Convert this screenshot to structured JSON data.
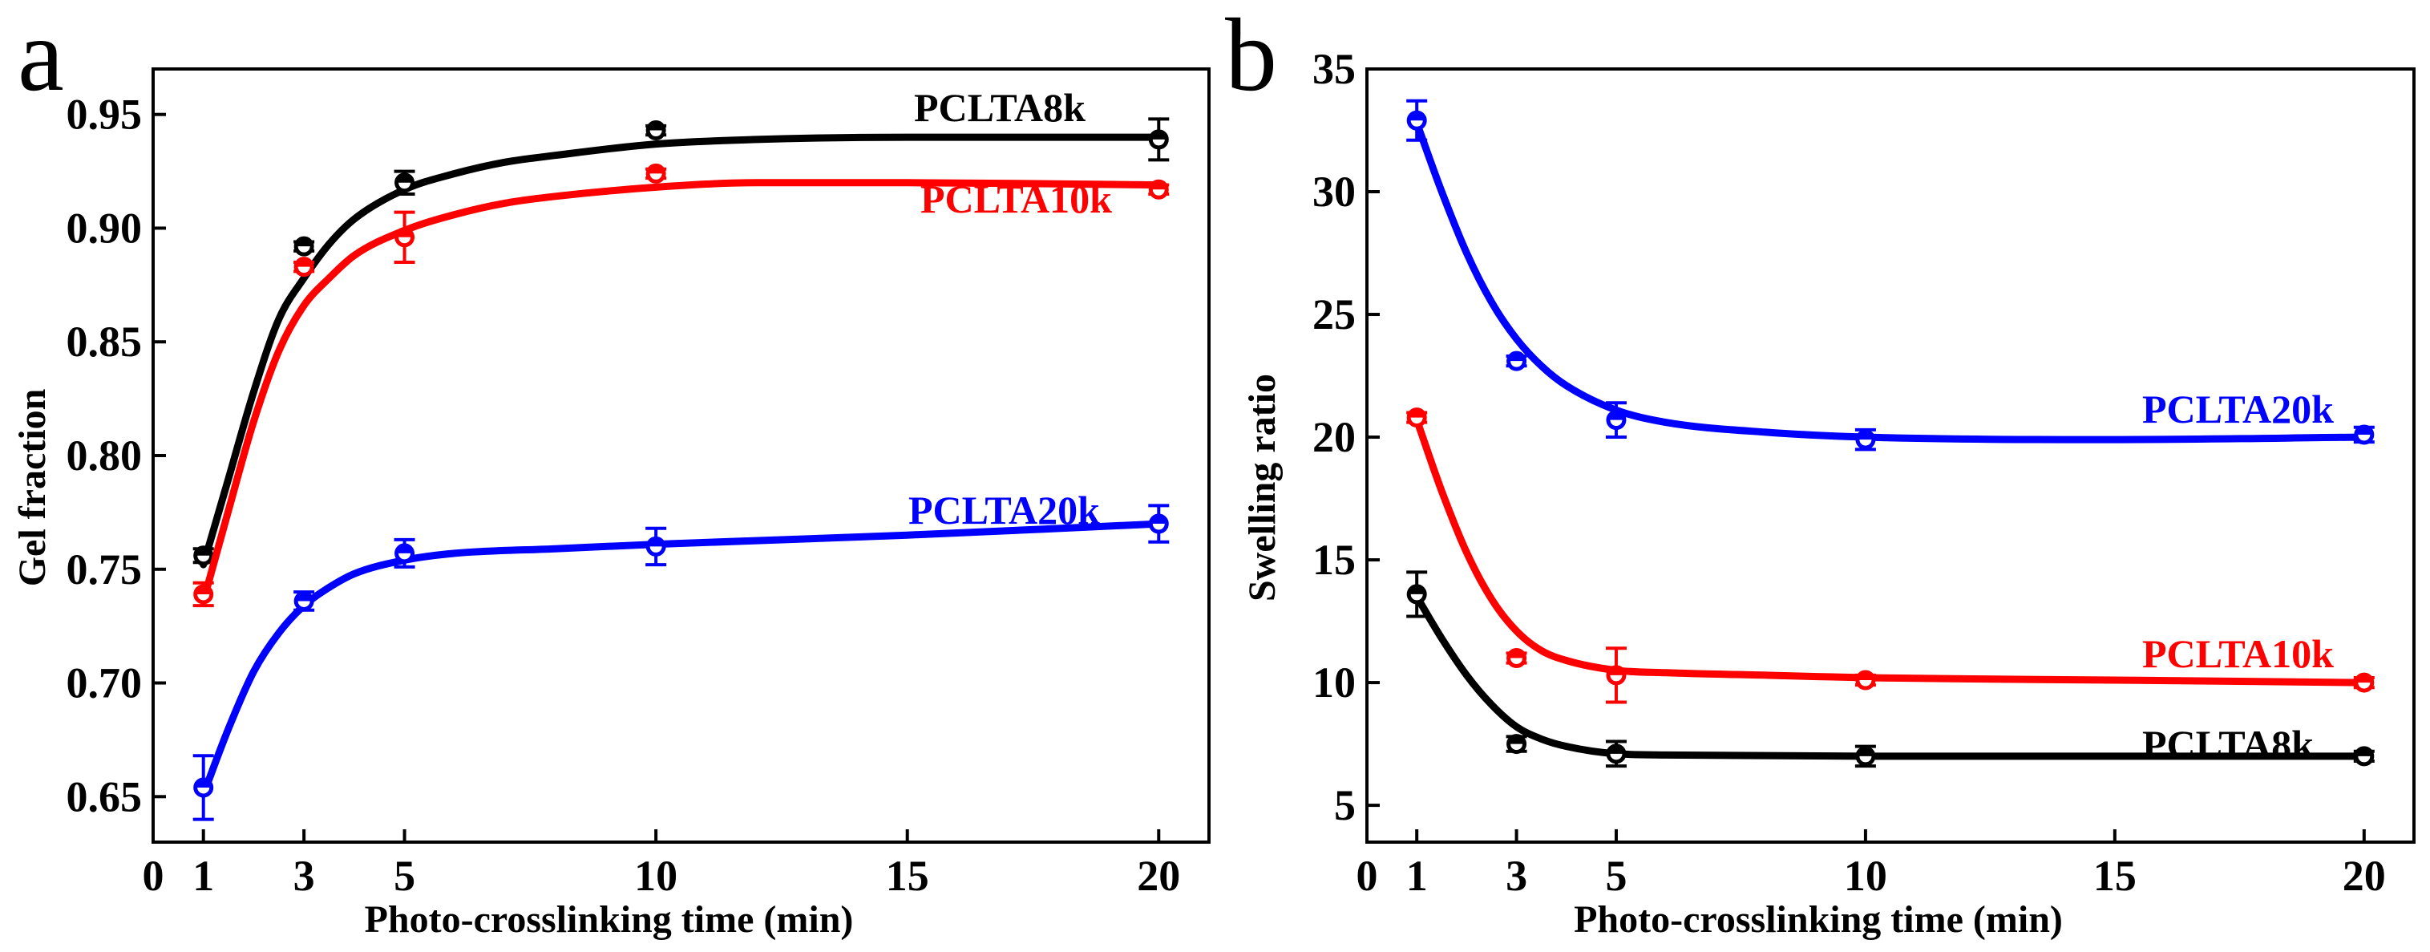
{
  "chart_data": [
    {
      "type": "scatter",
      "panel_label": "a",
      "xlabel": "Photo-crosslinking time (min)",
      "ylabel": "Gel fraction",
      "xlim": [
        0,
        21
      ],
      "ylim": [
        0.63,
        0.97
      ],
      "xticks": [
        "0",
        "1",
        "3",
        "5",
        "10",
        "15",
        "20"
      ],
      "yticks": [
        "0.65",
        "0.70",
        "0.75",
        "0.80",
        "0.85",
        "0.90",
        "0.95"
      ],
      "grid": false,
      "series": [
        {
          "name": "PCLTA8k",
          "color": "#000000",
          "x": [
            1,
            3,
            5,
            10,
            20
          ],
          "y": [
            0.756,
            0.892,
            0.92,
            0.943,
            0.939
          ],
          "err": [
            0.003,
            0.002,
            0.005,
            0.002,
            0.009
          ],
          "fit": [
            [
              1,
              0.752
            ],
            [
              1.5,
              0.79
            ],
            [
              2,
              0.828
            ],
            [
              2.5,
              0.86
            ],
            [
              3,
              0.878
            ],
            [
              3.5,
              0.893
            ],
            [
              4,
              0.904
            ],
            [
              5,
              0.917
            ],
            [
              6,
              0.924
            ],
            [
              7,
              0.929
            ],
            [
              8,
              0.932
            ],
            [
              10,
              0.937
            ],
            [
              12,
              0.939
            ],
            [
              15,
              0.94
            ],
            [
              20,
              0.94
            ]
          ]
        },
        {
          "name": "PCLTA10k",
          "color": "#ff0000",
          "x": [
            1,
            3,
            5,
            10,
            20
          ],
          "y": [
            0.739,
            0.883,
            0.896,
            0.924,
            0.917
          ],
          "err": [
            0.005,
            0.002,
            0.011,
            0.002,
            0.002
          ],
          "fit": [
            [
              1,
              0.736
            ],
            [
              1.5,
              0.776
            ],
            [
              2,
              0.815
            ],
            [
              2.5,
              0.846
            ],
            [
              3,
              0.866
            ],
            [
              3.5,
              0.878
            ],
            [
              4,
              0.888
            ],
            [
              5,
              0.899
            ],
            [
              6,
              0.906
            ],
            [
              7,
              0.911
            ],
            [
              8,
              0.914
            ],
            [
              10,
              0.918
            ],
            [
              12,
              0.92
            ],
            [
              15,
              0.92
            ],
            [
              20,
              0.919
            ]
          ]
        },
        {
          "name": "PCLTA20k",
          "color": "#0000ff",
          "x": [
            1,
            3,
            5,
            10,
            20
          ],
          "y": [
            0.654,
            0.736,
            0.757,
            0.76,
            0.77
          ],
          "err": [
            0.014,
            0.004,
            0.006,
            0.008,
            0.008
          ],
          "fit": [
            [
              1,
              0.651
            ],
            [
              1.5,
              0.68
            ],
            [
              2,
              0.705
            ],
            [
              2.5,
              0.722
            ],
            [
              3,
              0.734
            ],
            [
              3.5,
              0.742
            ],
            [
              4,
              0.748
            ],
            [
              5,
              0.754
            ],
            [
              6,
              0.757
            ],
            [
              8,
              0.759
            ],
            [
              10,
              0.761
            ],
            [
              15,
              0.765
            ],
            [
              20,
              0.77
            ]
          ]
        }
      ]
    },
    {
      "type": "scatter",
      "panel_label": "b",
      "xlabel": "Photo-crosslinking time (min)",
      "ylabel": "Swelling ratio",
      "xlim": [
        0,
        21
      ],
      "ylim": [
        3.5,
        35
      ],
      "xticks": [
        "0",
        "1",
        "3",
        "5",
        "10",
        "15",
        "20"
      ],
      "yticks": [
        "5",
        "10",
        "15",
        "20",
        "25",
        "30",
        "35"
      ],
      "grid": false,
      "series": [
        {
          "name": "PCLTA20k",
          "color": "#0000ff",
          "x": [
            1,
            3,
            5,
            10,
            20
          ],
          "y": [
            32.9,
            23.1,
            20.7,
            19.9,
            20.1
          ],
          "err": [
            0.8,
            0.2,
            0.7,
            0.4,
            0.3
          ],
          "fit": [
            [
              1,
              32.8
            ],
            [
              1.5,
              30.0
            ],
            [
              2,
              27.5
            ],
            [
              2.5,
              25.5
            ],
            [
              3,
              24.0
            ],
            [
              3.5,
              22.9
            ],
            [
              4,
              22.1
            ],
            [
              5,
              21.1
            ],
            [
              6,
              20.6
            ],
            [
              8,
              20.2
            ],
            [
              10,
              20.0
            ],
            [
              15,
              19.9
            ],
            [
              20,
              20.0
            ]
          ]
        },
        {
          "name": "PCLTA10k",
          "color": "#ff0000",
          "x": [
            1,
            3,
            5,
            10,
            20
          ],
          "y": [
            20.8,
            11.0,
            10.3,
            10.1,
            10.0
          ],
          "err": [
            0.2,
            0.2,
            1.1,
            0.2,
            0.2
          ],
          "fit": [
            [
              1,
              20.7
            ],
            [
              1.5,
              17.8
            ],
            [
              2,
              15.3
            ],
            [
              2.5,
              13.4
            ],
            [
              3,
              12.1
            ],
            [
              3.5,
              11.3
            ],
            [
              4,
              10.9
            ],
            [
              5,
              10.5
            ],
            [
              6,
              10.4
            ],
            [
              8,
              10.3
            ],
            [
              10,
              10.2
            ],
            [
              15,
              10.1
            ],
            [
              20,
              10.0
            ]
          ]
        },
        {
          "name": "PCLTA8k",
          "color": "#000000",
          "x": [
            1,
            3,
            5,
            10,
            20
          ],
          "y": [
            13.6,
            7.5,
            7.1,
            7.0,
            7.0
          ],
          "err": [
            0.9,
            0.3,
            0.5,
            0.4,
            0.2
          ],
          "fit": [
            [
              1,
              13.5
            ],
            [
              1.5,
              11.8
            ],
            [
              2,
              10.3
            ],
            [
              2.5,
              9.1
            ],
            [
              3,
              8.2
            ],
            [
              3.5,
              7.7
            ],
            [
              4,
              7.4
            ],
            [
              5,
              7.1
            ],
            [
              6,
              7.05
            ],
            [
              10,
              7.0
            ],
            [
              20,
              7.0
            ]
          ]
        }
      ]
    }
  ]
}
